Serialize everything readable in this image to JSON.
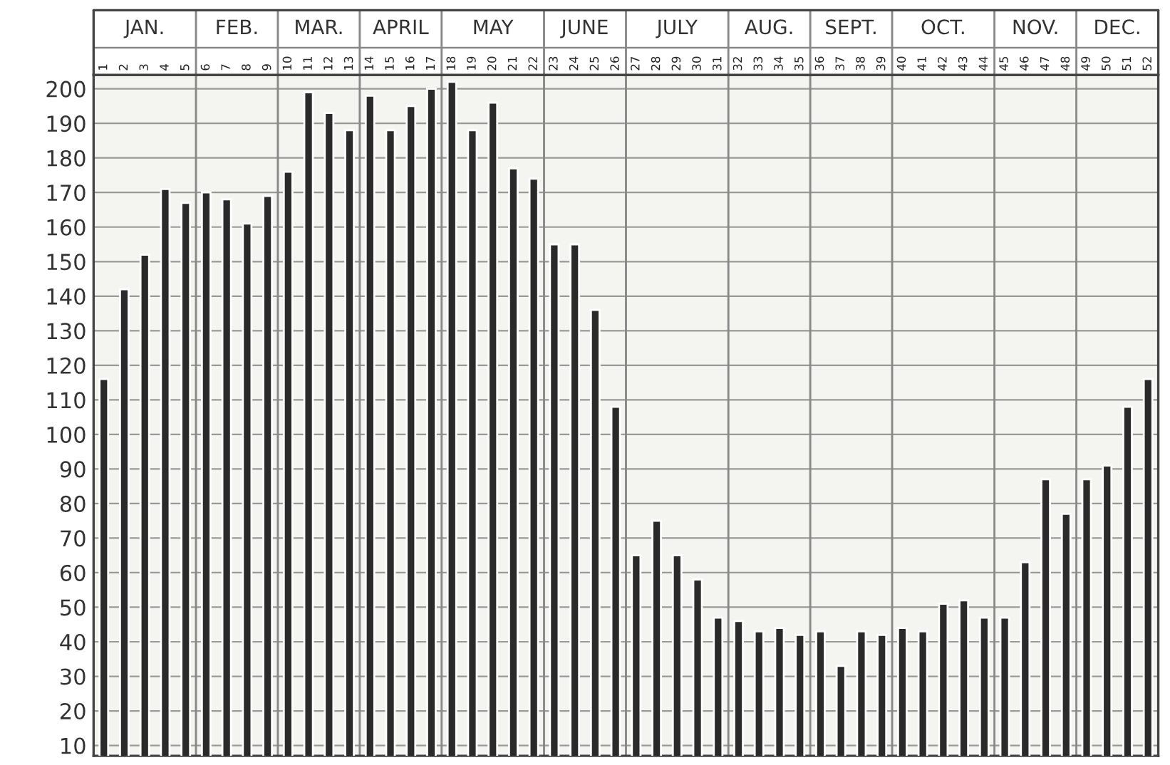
{
  "chart_data": {
    "type": "bar",
    "color": "#2a2a2a",
    "x": [
      1,
      2,
      3,
      4,
      5,
      6,
      7,
      8,
      9,
      10,
      11,
      12,
      13,
      14,
      15,
      16,
      17,
      18,
      19,
      20,
      21,
      22,
      23,
      24,
      25,
      26,
      27,
      28,
      29,
      30,
      31,
      32,
      33,
      34,
      35,
      36,
      37,
      38,
      39,
      40,
      41,
      42,
      43,
      44,
      45,
      46,
      47,
      48,
      49,
      50,
      51,
      52
    ],
    "values": [
      116,
      142,
      152,
      171,
      167,
      170,
      168,
      161,
      169,
      176,
      199,
      193,
      188,
      198,
      188,
      195,
      200,
      202,
      188,
      196,
      177,
      174,
      155,
      155,
      136,
      108,
      65,
      75,
      65,
      58,
      47,
      46,
      43,
      44,
      42,
      43,
      33,
      43,
      42,
      44,
      43,
      51,
      52,
      47,
      47,
      63,
      87,
      77,
      87,
      91,
      108,
      116
    ],
    "xlim": [
      0.5,
      52.5
    ],
    "xticks": [
      1,
      2,
      3,
      4,
      5,
      6,
      7,
      8,
      9,
      10,
      11,
      12,
      13,
      14,
      15,
      16,
      17,
      18,
      19,
      20,
      21,
      22,
      23,
      24,
      25,
      26,
      27,
      28,
      29,
      30,
      31,
      32,
      33,
      34,
      35,
      36,
      37,
      38,
      39,
      40,
      41,
      42,
      43,
      44,
      45,
      46,
      47,
      48,
      49,
      50,
      51,
      52
    ],
    "ylim": [
      7,
      204
    ],
    "yticks": [
      10,
      20,
      30,
      40,
      50,
      60,
      70,
      80,
      90,
      100,
      110,
      120,
      130,
      140,
      150,
      160,
      170,
      180,
      190,
      200
    ],
    "grid": "y",
    "bands": [
      {
        "axis": "x",
        "from": 0.5,
        "to": 5.5,
        "label": "JAN.",
        "color": "#f4f4f0"
      },
      {
        "axis": "x",
        "from": 5.5,
        "to": 9.5,
        "label": "FEB.",
        "color": "#f4f4f0"
      },
      {
        "axis": "x",
        "from": 9.5,
        "to": 13.5,
        "label": "MAR.",
        "color": "#f4f4f0"
      },
      {
        "axis": "x",
        "from": 13.5,
        "to": 17.5,
        "label": "APRIL",
        "color": "#f4f4f0"
      },
      {
        "axis": "x",
        "from": 17.5,
        "to": 22.5,
        "label": "MAY",
        "color": "#f4f4f0"
      },
      {
        "axis": "x",
        "from": 22.5,
        "to": 26.5,
        "label": "JUNE",
        "color": "#f4f4f0"
      },
      {
        "axis": "x",
        "from": 26.5,
        "to": 31.5,
        "label": "JULY",
        "color": "#f4f4f0"
      },
      {
        "axis": "x",
        "from": 31.5,
        "to": 35.5,
        "label": "AUG.",
        "color": "#f4f4f0"
      },
      {
        "axis": "x",
        "from": 35.5,
        "to": 39.5,
        "label": "SEPT.",
        "color": "#f4f4f0"
      },
      {
        "axis": "x",
        "from": 39.5,
        "to": 44.5,
        "label": "OCT.",
        "color": "#f4f4f0"
      },
      {
        "axis": "x",
        "from": 44.5,
        "to": 48.5,
        "label": "NOV.",
        "color": "#f4f4f0"
      },
      {
        "axis": "x",
        "from": 48.5,
        "to": 52.5,
        "label": "DEC.",
        "color": "#f4f4f0"
      }
    ]
  }
}
